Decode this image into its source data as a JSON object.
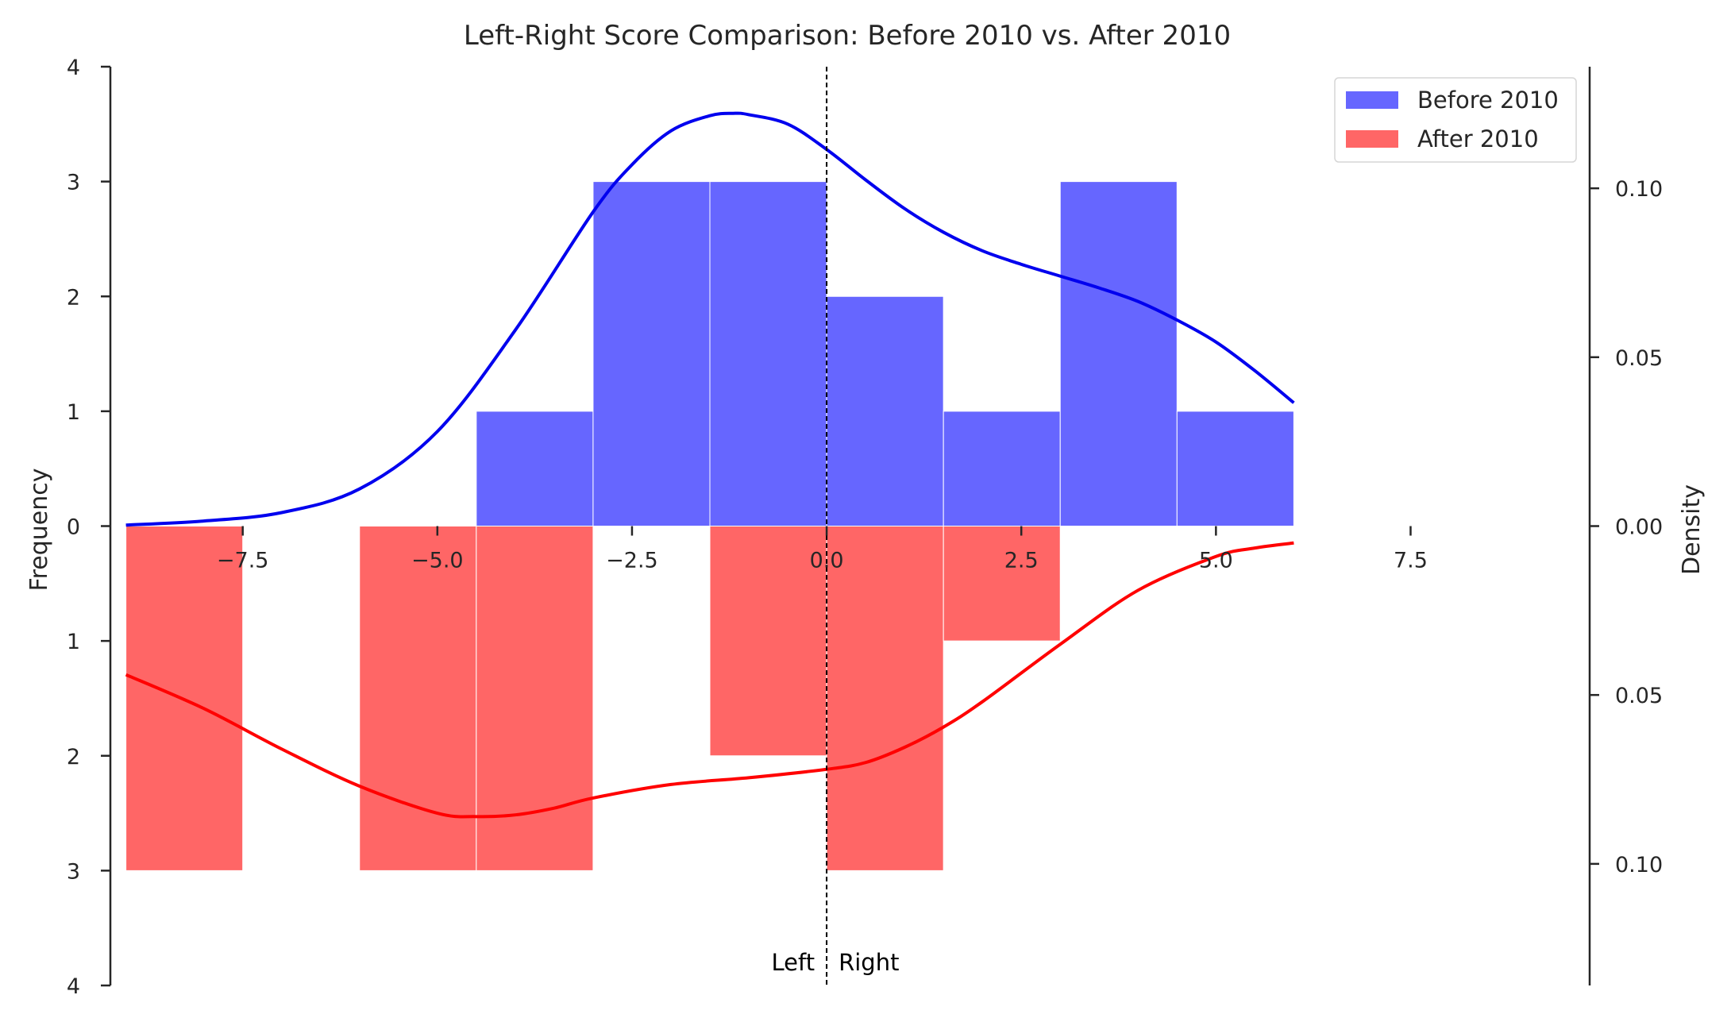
{
  "chart_data": {
    "type": "bar",
    "title": "Left-Right Score Comparison: Before 2010 vs. After 2010",
    "ylabel": "Frequency",
    "y2label": "Density",
    "xlim": [
      -9.2,
      9.8
    ],
    "ylim": [
      -4,
      4
    ],
    "y2lim": [
      -0.136,
      0.136
    ],
    "x_ticks": [
      -7.5,
      -5.0,
      -2.5,
      0.0,
      2.5,
      5.0,
      7.5
    ],
    "x_tick_labels": [
      "−7.5",
      "−5.0",
      "−2.5",
      "0.0",
      "2.5",
      "5.0",
      "7.5"
    ],
    "y_ticks": [
      -4,
      -3,
      -2,
      -1,
      0,
      1,
      2,
      3,
      4
    ],
    "y_tick_labels": [
      "4",
      "3",
      "2",
      "1",
      "0",
      "1",
      "2",
      "3",
      "4"
    ],
    "y2_ticks": [
      -0.1,
      -0.05,
      0.0,
      0.05,
      0.1
    ],
    "y2_tick_labels": [
      "0.10",
      "0.05",
      "0.00",
      "0.05",
      "0.10"
    ],
    "bin_edges": [
      -9.0,
      -7.5,
      -6.0,
      -4.5,
      -3.0,
      -1.5,
      0.0,
      1.5,
      3.0,
      4.5,
      6.0
    ],
    "series": [
      {
        "name": "Before 2010",
        "color": "#6666ff",
        "direction": "up",
        "counts": [
          0,
          0,
          0,
          1,
          3,
          3,
          2,
          1,
          3,
          1
        ]
      },
      {
        "name": "After 2010",
        "color": "#ff6666",
        "direction": "down",
        "counts": [
          3,
          0,
          3,
          3,
          0,
          2,
          3,
          1,
          0,
          0
        ]
      }
    ],
    "kde": [
      {
        "name": "Before 2010 density",
        "color": "#0000ee",
        "x": [
          -9.0,
          -8.0,
          -7.0,
          -6.0,
          -5.0,
          -4.0,
          -3.0,
          -2.5,
          -2.0,
          -1.5,
          -1.2,
          -1.0,
          -0.5,
          0.0,
          0.5,
          1.0,
          1.5,
          2.0,
          2.5,
          3.0,
          3.5,
          4.0,
          4.5,
          5.0,
          5.5,
          6.0
        ],
        "density": [
          0.0003,
          0.0015,
          0.004,
          0.011,
          0.028,
          0.058,
          0.093,
          0.107,
          0.117,
          0.1215,
          0.1222,
          0.1218,
          0.119,
          0.1115,
          0.1025,
          0.094,
          0.087,
          0.0815,
          0.0775,
          0.074,
          0.0705,
          0.0665,
          0.061,
          0.0545,
          0.046,
          0.0365
        ]
      },
      {
        "name": "After 2010 density",
        "color": "#ff0000",
        "x": [
          -9.0,
          -8.0,
          -7.0,
          -6.0,
          -5.0,
          -4.5,
          -4.0,
          -3.5,
          -3.0,
          -2.0,
          -1.0,
          0.0,
          0.5,
          1.0,
          1.5,
          2.0,
          3.0,
          4.0,
          5.0,
          5.5,
          6.0
        ],
        "density": [
          -0.044,
          -0.054,
          -0.066,
          -0.077,
          -0.085,
          -0.086,
          -0.0855,
          -0.0835,
          -0.0805,
          -0.0765,
          -0.0745,
          -0.072,
          -0.07,
          -0.0655,
          -0.0595,
          -0.052,
          -0.035,
          -0.019,
          -0.009,
          -0.0065,
          -0.005
        ]
      }
    ],
    "reference_line": {
      "x": 0.0,
      "style": "dashed",
      "color": "#000000"
    },
    "annotations": [
      {
        "text": "Left",
        "x": 0.0,
        "y": -3.8,
        "ha": "right"
      },
      {
        "text": "Right",
        "x": 0.0,
        "y": -3.8,
        "ha": "left"
      }
    ],
    "legend_position": "top-right",
    "grid": false
  }
}
